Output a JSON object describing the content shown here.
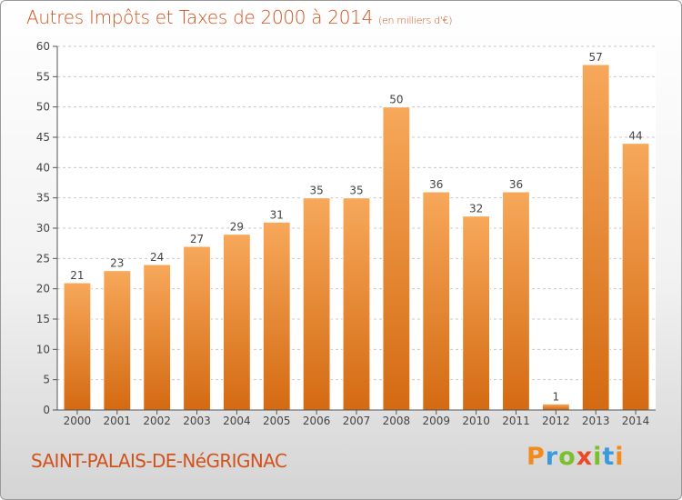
{
  "chart_data": {
    "type": "bar",
    "title": "Autres Impôts et Taxes de 2000 à 2014",
    "subtitle": "(en milliers d'€)",
    "categories": [
      "2000",
      "2001",
      "2002",
      "2003",
      "2004",
      "2005",
      "2006",
      "2007",
      "2008",
      "2009",
      "2010",
      "2011",
      "2012",
      "2013",
      "2014"
    ],
    "values": [
      21,
      23,
      24,
      27,
      29,
      31,
      35,
      35,
      50,
      36,
      32,
      36,
      1,
      57,
      44
    ],
    "ylim": [
      0,
      60
    ],
    "yticks": [
      0,
      5,
      10,
      15,
      20,
      25,
      30,
      35,
      40,
      45,
      50,
      55,
      60
    ],
    "grid": true,
    "bar_color": "#f0892f"
  },
  "footer": {
    "commune": "SAINT-PALAIS-DE-NéGRIGNAC",
    "logo_text": "Proxiti"
  }
}
